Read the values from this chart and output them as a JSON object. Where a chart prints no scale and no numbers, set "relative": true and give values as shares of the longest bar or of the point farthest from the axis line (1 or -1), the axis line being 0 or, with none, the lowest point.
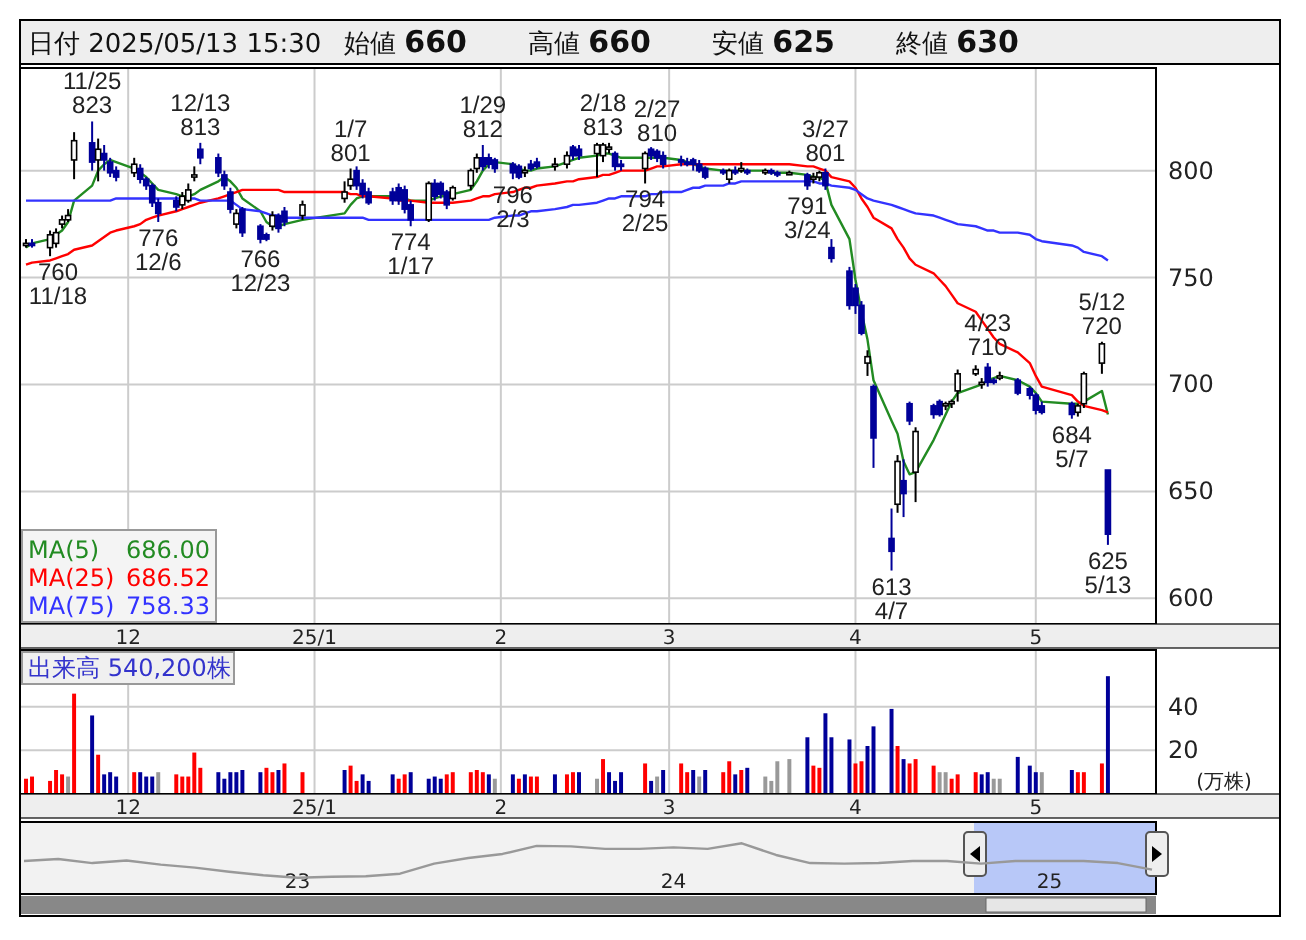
{
  "chart_data": [
    {
      "type": "candlestick",
      "title": "日付 2025/05/13 15:30",
      "annotations": [
        "始値 660",
        "高値 660",
        "安値 625",
        "終値 630",
        {
          "text": "760\n11/18",
          "x": "2024-11-18",
          "y": 760
        },
        {
          "text": "11/25\n823",
          "x": "2024-11-25",
          "y": 823
        },
        {
          "text": "776\n12/6",
          "x": "2024-12-06",
          "y": 776
        },
        {
          "text": "12/13\n813",
          "x": "2024-12-13",
          "y": 813
        },
        {
          "text": "766\n12/23",
          "x": "2024-12-23",
          "y": 766
        },
        {
          "text": "1/7\n801",
          "x": "2025-01-07",
          "y": 801
        },
        {
          "text": "774\n1/17",
          "x": "2025-01-17",
          "y": 774
        },
        {
          "text": "1/29\n812",
          "x": "2025-01-29",
          "y": 812
        },
        {
          "text": "796\n2/3",
          "x": "2025-02-03",
          "y": 796
        },
        {
          "text": "2/18\n813",
          "x": "2025-02-18",
          "y": 813
        },
        {
          "text": "794\n2/25",
          "x": "2025-02-25",
          "y": 794
        },
        {
          "text": "2/27\n810",
          "x": "2025-02-27",
          "y": 810
        },
        {
          "text": "791\n3/24",
          "x": "2025-03-24",
          "y": 791
        },
        {
          "text": "3/27\n801",
          "x": "2025-03-27",
          "y": 801
        },
        {
          "text": "613\n4/7",
          "x": "2025-04-07",
          "y": 613
        },
        {
          "text": "4/23\n710",
          "x": "2025-04-23",
          "y": 710
        },
        {
          "text": "684\n5/7",
          "x": "2025-05-07",
          "y": 684
        },
        {
          "text": "5/12\n720",
          "x": "2025-05-12",
          "y": 720
        },
        {
          "text": "625\n5/13",
          "x": "2025-05-13",
          "y": 625
        }
      ],
      "x": [
        "2024-11-14",
        "2024-11-15",
        "2024-11-18",
        "2024-11-19",
        "2024-11-20",
        "2024-11-21",
        "2024-11-22",
        "2024-11-25",
        "2024-11-26",
        "2024-11-27",
        "2024-11-28",
        "2024-11-29",
        "2024-12-02",
        "2024-12-03",
        "2024-12-04",
        "2024-12-05",
        "2024-12-06",
        "2024-12-09",
        "2024-12-10",
        "2024-12-11",
        "2024-12-12",
        "2024-12-13",
        "2024-12-16",
        "2024-12-17",
        "2024-12-18",
        "2024-12-19",
        "2024-12-20",
        "2024-12-23",
        "2024-12-24",
        "2024-12-25",
        "2024-12-26",
        "2024-12-27",
        "2024-12-30",
        "2025-01-06",
        "2025-01-07",
        "2025-01-08",
        "2025-01-09",
        "2025-01-10",
        "2025-01-14",
        "2025-01-15",
        "2025-01-16",
        "2025-01-17",
        "2025-01-20",
        "2025-01-21",
        "2025-01-22",
        "2025-01-23",
        "2025-01-24",
        "2025-01-27",
        "2025-01-28",
        "2025-01-29",
        "2025-01-30",
        "2025-01-31",
        "2025-02-03",
        "2025-02-04",
        "2025-02-05",
        "2025-02-06",
        "2025-02-07",
        "2025-02-10",
        "2025-02-12",
        "2025-02-13",
        "2025-02-14",
        "2025-02-17",
        "2025-02-18",
        "2025-02-19",
        "2025-02-20",
        "2025-02-21",
        "2025-02-25",
        "2025-02-26",
        "2025-02-27",
        "2025-02-28",
        "2025-03-03",
        "2025-03-04",
        "2025-03-05",
        "2025-03-06",
        "2025-03-07",
        "2025-03-10",
        "2025-03-11",
        "2025-03-12",
        "2025-03-13",
        "2025-03-14",
        "2025-03-17",
        "2025-03-18",
        "2025-03-19",
        "2025-03-21",
        "2025-03-24",
        "2025-03-25",
        "2025-03-26",
        "2025-03-27",
        "2025-03-28",
        "2025-03-31",
        "2025-04-01",
        "2025-04-02",
        "2025-04-03",
        "2025-04-04",
        "2025-04-07",
        "2025-04-08",
        "2025-04-09",
        "2025-04-10",
        "2025-04-11",
        "2025-04-14",
        "2025-04-15",
        "2025-04-16",
        "2025-04-17",
        "2025-04-18",
        "2025-04-21",
        "2025-04-22",
        "2025-04-23",
        "2025-04-24",
        "2025-04-25",
        "2025-04-28",
        "2025-04-30",
        "2025-05-01",
        "2025-05-02",
        "2025-05-07",
        "2025-05-08",
        "2025-05-09",
        "2025-05-12",
        "2025-05-13"
      ],
      "xlim": [
        "2024-11-13",
        "2025-05-21"
      ],
      "xticks": [
        {
          "value": "2024-12-01",
          "label": "12"
        },
        {
          "value": "2025-01-01",
          "label": "25/1"
        },
        {
          "value": "2025-02-01",
          "label": "2"
        },
        {
          "value": "2025-03-01",
          "label": "3"
        },
        {
          "value": "2025-04-01",
          "label": "4"
        },
        {
          "value": "2025-05-01",
          "label": "5"
        }
      ],
      "ylim": [
        588,
        848
      ],
      "yticks": [
        600,
        650,
        700,
        750,
        800
      ],
      "grid": true,
      "legend": "bottom left",
      "ohlc": [
        [
          765,
          768,
          764,
          766
        ],
        [
          766,
          768,
          764,
          765
        ],
        [
          764,
          772,
          760,
          770
        ],
        [
          766,
          773,
          764,
          771
        ],
        [
          775,
          779,
          773,
          777
        ],
        [
          777,
          782,
          776,
          779
        ],
        [
          805,
          818,
          796,
          814
        ],
        [
          813,
          823,
          800,
          804
        ],
        [
          805,
          815,
          795,
          810
        ],
        [
          808,
          812,
          800,
          805
        ],
        [
          804,
          806,
          797,
          799
        ],
        [
          800,
          802,
          795,
          797
        ],
        [
          799,
          806,
          797,
          803
        ],
        [
          801,
          803,
          794,
          796
        ],
        [
          796,
          797,
          791,
          793
        ],
        [
          793,
          794,
          783,
          785
        ],
        [
          785,
          787,
          776,
          780
        ],
        [
          786,
          788,
          781,
          783
        ],
        [
          784,
          790,
          782,
          788
        ],
        [
          786,
          794,
          785,
          791
        ],
        [
          797,
          802,
          795,
          798
        ],
        [
          810,
          813,
          803,
          806
        ],
        [
          806,
          808,
          797,
          799
        ],
        [
          798,
          800,
          791,
          793
        ],
        [
          790,
          792,
          780,
          782
        ],
        [
          775,
          782,
          773,
          780
        ],
        [
          782,
          783,
          769,
          771
        ],
        [
          774,
          775,
          766,
          768
        ],
        [
          770,
          771,
          767,
          768
        ],
        [
          774,
          781,
          772,
          779
        ],
        [
          779,
          780,
          771,
          773
        ],
        [
          781,
          783,
          774,
          776
        ],
        [
          779,
          786,
          777,
          784
        ],
        [
          787,
          795,
          785,
          790
        ],
        [
          793,
          801,
          791,
          796
        ],
        [
          800,
          802,
          791,
          793
        ],
        [
          794,
          796,
          787,
          789
        ],
        [
          790,
          792,
          784,
          785
        ],
        [
          790,
          792,
          784,
          786
        ],
        [
          792,
          794,
          784,
          786
        ],
        [
          791,
          793,
          780,
          782
        ],
        [
          784,
          786,
          774,
          777
        ],
        [
          777,
          795,
          776,
          794
        ],
        [
          794,
          796,
          786,
          788
        ],
        [
          794,
          795,
          787,
          789
        ],
        [
          790,
          791,
          782,
          784
        ],
        [
          787,
          793,
          786,
          792
        ],
        [
          793,
          801,
          791,
          800
        ],
        [
          801,
          808,
          799,
          806
        ],
        [
          806,
          812,
          800,
          802
        ],
        [
          806,
          808,
          801,
          803
        ],
        [
          805,
          806,
          799,
          801
        ],
        [
          803,
          804,
          796,
          799
        ],
        [
          802,
          803,
          796,
          797
        ],
        [
          799,
          802,
          797,
          800
        ],
        [
          803,
          805,
          800,
          801
        ],
        [
          804,
          806,
          801,
          802
        ],
        [
          802,
          806,
          800,
          803
        ],
        [
          803,
          809,
          801,
          807
        ],
        [
          811,
          812,
          805,
          807
        ],
        [
          810,
          812,
          805,
          807
        ],
        [
          808,
          813,
          797,
          812
        ],
        [
          807,
          813,
          804,
          812
        ],
        [
          810,
          813,
          808,
          811
        ],
        [
          808,
          809,
          800,
          802
        ],
        [
          803,
          805,
          800,
          802
        ],
        [
          801,
          809,
          794,
          808
        ],
        [
          810,
          811,
          805,
          807
        ],
        [
          809,
          810,
          804,
          806
        ],
        [
          807,
          809,
          801,
          803
        ],
        [
          805,
          807,
          802,
          804
        ],
        [
          804,
          806,
          802,
          803
        ],
        [
          805,
          806,
          800,
          803
        ],
        [
          803,
          805,
          799,
          800
        ],
        [
          801,
          802,
          796,
          797
        ],
        [
          800,
          801,
          798,
          799
        ],
        [
          796,
          801,
          794,
          800
        ],
        [
          800,
          802,
          798,
          799
        ],
        [
          800,
          804,
          799,
          801
        ],
        [
          800,
          801,
          798,
          799
        ],
        [
          799,
          801,
          798,
          800
        ],
        [
          800,
          801,
          798,
          799
        ],
        [
          799,
          800,
          797,
          798
        ],
        [
          799,
          800,
          798,
          799
        ],
        [
          798,
          799,
          791,
          793
        ],
        [
          796,
          799,
          794,
          797
        ],
        [
          797,
          800,
          795,
          799
        ],
        [
          799,
          801,
          791,
          793
        ],
        [
          764,
          768,
          757,
          759
        ],
        [
          753,
          755,
          735,
          737
        ],
        [
          745,
          747,
          733,
          737
        ],
        [
          737,
          739,
          723,
          724
        ],
        [
          710,
          716,
          704,
          713
        ],
        [
          699,
          700,
          661,
          675
        ],
        [
          628,
          642,
          613,
          622
        ],
        [
          644,
          667,
          640,
          664
        ],
        [
          655,
          665,
          638,
          649
        ],
        [
          691,
          692,
          681,
          683
        ],
        [
          659,
          680,
          645,
          678
        ],
        [
          690,
          691,
          684,
          686
        ],
        [
          692,
          693,
          685,
          686
        ],
        [
          690,
          692,
          688,
          691
        ],
        [
          691,
          693,
          689,
          692
        ],
        [
          697,
          707,
          692,
          705
        ],
        [
          705,
          709,
          704,
          707
        ],
        [
          700,
          703,
          698,
          701
        ],
        [
          708,
          710,
          699,
          701
        ],
        [
          702,
          703,
          700,
          701
        ],
        [
          703,
          706,
          702,
          704
        ],
        [
          702,
          703,
          695,
          696
        ],
        [
          698,
          699,
          693,
          695
        ],
        [
          695,
          696,
          686,
          688
        ],
        [
          690,
          692,
          686,
          687
        ],
        [
          691,
          692,
          684,
          686
        ],
        [
          687,
          691,
          685,
          690
        ],
        [
          691,
          706,
          689,
          705
        ],
        [
          710,
          720,
          705,
          719
        ],
        [
          660,
          660,
          625,
          630
        ]
      ],
      "colors": [
        "#ffffff",
        "#000099",
        "#ffffff",
        "#ffffff",
        "#ffffff",
        "#ffffff",
        "#ffffff",
        "#000099",
        "#ffffff",
        "#000099",
        "#000099",
        "#000099",
        "#ffffff",
        "#000099",
        "#000099",
        "#000099",
        "#000099",
        "#000099",
        "#ffffff",
        "#ffffff",
        "#ffffff",
        "#000099",
        "#000099",
        "#000099",
        "#000099",
        "#ffffff",
        "#000099",
        "#000099",
        "#000099",
        "#ffffff",
        "#000099",
        "#000099",
        "#ffffff",
        "#ffffff",
        "#ffffff",
        "#000099",
        "#000099",
        "#000099",
        "#000099",
        "#000099",
        "#000099",
        "#000099",
        "#ffffff",
        "#000099",
        "#000099",
        "#000099",
        "#ffffff",
        "#ffffff",
        "#ffffff",
        "#000099",
        "#000099",
        "#000099",
        "#000099",
        "#000099",
        "#ffffff",
        "#000099",
        "#000099",
        "#ffffff",
        "#ffffff",
        "#000099",
        "#000099",
        "#ffffff",
        "#ffffff",
        "#ffffff",
        "#000099",
        "#000099",
        "#ffffff",
        "#000099",
        "#000099",
        "#000099",
        "#000099",
        "#000099",
        "#000099",
        "#000099",
        "#000099",
        "#000099",
        "#ffffff",
        "#000099",
        "#ffffff",
        "#000099",
        "#ffffff",
        "#000099",
        "#000099",
        "#ffffff",
        "#000099",
        "#ffffff",
        "#ffffff",
        "#000099",
        "#000099",
        "#000099",
        "#000099",
        "#000099",
        "#ffffff",
        "#000099",
        "#000099",
        "#ffffff",
        "#000099",
        "#000099",
        "#ffffff",
        "#000099",
        "#000099",
        "#ffffff",
        "#ffffff",
        "#ffffff",
        "#ffffff",
        "#ffffff",
        "#000099",
        "#000099",
        "#ffffff",
        "#000099",
        "#000099",
        "#000099",
        "#000099",
        "#000099",
        "#ffffff",
        "#ffffff",
        "#ffffff",
        "#000099"
      ],
      "series": [
        {
          "type": "line",
          "name": "MA(5) 686.00",
          "color": "#228b22",
          "values": [
            764,
            766,
            768,
            770,
            772,
            776,
            786,
            793,
            800,
            803,
            805,
            804,
            801,
            799,
            797,
            794,
            791,
            789,
            788,
            788,
            789,
            791,
            795,
            797,
            795,
            792,
            787,
            781,
            776,
            774,
            774,
            775,
            777,
            780,
            784,
            787,
            788,
            788,
            788,
            788,
            787,
            786,
            786,
            787,
            788,
            788,
            789,
            791,
            795,
            800,
            803,
            804,
            803,
            801,
            800,
            800,
            801,
            802,
            804,
            805,
            806,
            807,
            808,
            808,
            807,
            806,
            806,
            806,
            806,
            806,
            805,
            804,
            803,
            802,
            801,
            800,
            800,
            800,
            800,
            800,
            800,
            799,
            799,
            799,
            798,
            797,
            797,
            795,
            784,
            768,
            749,
            734,
            721,
            702,
            683,
            677,
            664,
            658,
            659,
            674,
            680,
            686,
            692,
            696,
            699,
            700,
            702,
            703,
            704,
            702,
            699,
            696,
            692,
            691,
            691,
            692,
            697,
            686
          ]
        },
        {
          "type": "line",
          "name": "MA(25) 686.52",
          "color": "#ff0000",
          "values": [
            756,
            757,
            758,
            759,
            760,
            761,
            763,
            765,
            767,
            769,
            771,
            772,
            774,
            775,
            777,
            778,
            779,
            781,
            782,
            783,
            784,
            785,
            787,
            788,
            789,
            790,
            791,
            791,
            791,
            791,
            791,
            790,
            790,
            790,
            789,
            789,
            788,
            788,
            787,
            786,
            786,
            786,
            785,
            785,
            785,
            785,
            785,
            786,
            787,
            788,
            788,
            789,
            790,
            791,
            792,
            792,
            793,
            794,
            795,
            795,
            796,
            797,
            798,
            798,
            799,
            800,
            800,
            801,
            802,
            802,
            803,
            803,
            803,
            803,
            803,
            803,
            803,
            803,
            803,
            803,
            803,
            803,
            803,
            803,
            802,
            802,
            801,
            800,
            797,
            795,
            792,
            787,
            783,
            778,
            773,
            768,
            764,
            759,
            756,
            752,
            749,
            746,
            742,
            738,
            734,
            730,
            726,
            722,
            719,
            715,
            710,
            704,
            699,
            695,
            692,
            690,
            688,
            687
          ]
        },
        {
          "type": "line",
          "name": "MA(75) 758.33",
          "color": "#3333ff",
          "values": [
            786,
            786,
            786,
            786,
            786,
            786,
            786,
            786,
            786,
            786,
            786,
            787,
            787,
            787,
            787,
            787,
            787,
            787,
            787,
            787,
            787,
            786,
            786,
            786,
            786,
            784,
            782,
            781,
            780,
            779,
            779,
            778,
            778,
            778,
            778,
            778,
            778,
            777,
            777,
            777,
            777,
            777,
            777,
            777,
            777,
            777,
            777,
            777,
            777,
            777,
            777,
            778,
            779,
            779,
            780,
            781,
            781,
            782,
            783,
            784,
            784,
            785,
            786,
            787,
            787,
            788,
            788,
            789,
            789,
            790,
            790,
            791,
            792,
            792,
            793,
            793,
            794,
            794,
            795,
            795,
            795,
            795,
            795,
            795,
            795,
            795,
            794,
            794,
            793,
            792,
            791,
            789,
            787,
            786,
            784,
            783,
            782,
            781,
            780,
            779,
            778,
            777,
            776,
            775,
            774,
            773,
            772,
            772,
            771,
            771,
            770,
            768,
            767,
            765,
            764,
            762,
            760,
            758
          ]
        }
      ]
    },
    {
      "type": "bar",
      "title": "出来高 540,200株",
      "ylabel": "(万株)",
      "x": [
        "2024-11-14",
        "2024-11-15",
        "2024-11-18",
        "2024-11-19",
        "2024-11-20",
        "2024-11-21",
        "2024-11-22",
        "2024-11-25",
        "2024-11-26",
        "2024-11-27",
        "2024-11-28",
        "2024-11-29",
        "2024-12-02",
        "2024-12-03",
        "2024-12-04",
        "2024-12-05",
        "2024-12-06",
        "2024-12-09",
        "2024-12-10",
        "2024-12-11",
        "2024-12-12",
        "2024-12-13",
        "2024-12-16",
        "2024-12-17",
        "2024-12-18",
        "2024-12-19",
        "2024-12-20",
        "2024-12-23",
        "2024-12-24",
        "2024-12-25",
        "2024-12-26",
        "2024-12-27",
        "2024-12-30",
        "2025-01-06",
        "2025-01-07",
        "2025-01-08",
        "2025-01-09",
        "2025-01-10",
        "2025-01-14",
        "2025-01-15",
        "2025-01-16",
        "2025-01-17",
        "2025-01-20",
        "2025-01-21",
        "2025-01-22",
        "2025-01-23",
        "2025-01-24",
        "2025-01-27",
        "2025-01-28",
        "2025-01-29",
        "2025-01-30",
        "2025-01-31",
        "2025-02-03",
        "2025-02-04",
        "2025-02-05",
        "2025-02-06",
        "2025-02-07",
        "2025-02-10",
        "2025-02-12",
        "2025-02-13",
        "2025-02-14",
        "2025-02-17",
        "2025-02-18",
        "2025-02-19",
        "2025-02-20",
        "2025-02-21",
        "2025-02-25",
        "2025-02-26",
        "2025-02-27",
        "2025-02-28",
        "2025-03-03",
        "2025-03-04",
        "2025-03-05",
        "2025-03-06",
        "2025-03-07",
        "2025-03-10",
        "2025-03-11",
        "2025-03-12",
        "2025-03-13",
        "2025-03-14",
        "2025-03-17",
        "2025-03-18",
        "2025-03-19",
        "2025-03-21",
        "2025-03-24",
        "2025-03-25",
        "2025-03-26",
        "2025-03-27",
        "2025-03-28",
        "2025-03-31",
        "2025-04-01",
        "2025-04-02",
        "2025-04-03",
        "2025-04-04",
        "2025-04-07",
        "2025-04-08",
        "2025-04-09",
        "2025-04-10",
        "2025-04-11",
        "2025-04-14",
        "2025-04-15",
        "2025-04-16",
        "2025-04-17",
        "2025-04-18",
        "2025-04-21",
        "2025-04-22",
        "2025-04-23",
        "2025-04-24",
        "2025-04-25",
        "2025-04-28",
        "2025-04-30",
        "2025-05-01",
        "2025-05-02",
        "2025-05-07",
        "2025-05-08",
        "2025-05-09",
        "2025-05-12",
        "2025-05-13"
      ],
      "xlim": [
        "2024-11-13",
        "2025-05-21"
      ],
      "xticks": [
        {
          "value": "2024-12-01",
          "label": "12"
        },
        {
          "value": "2025-01-01",
          "label": "25/1"
        },
        {
          "value": "2025-02-01",
          "label": "2"
        },
        {
          "value": "2025-03-01",
          "label": "3"
        },
        {
          "value": "2025-04-01",
          "label": "4"
        },
        {
          "value": "2025-05-01",
          "label": "5"
        }
      ],
      "ylim": [
        0,
        66
      ],
      "yticks": [
        20,
        40
      ],
      "grid": true,
      "values": [
        7,
        8,
        6,
        11,
        9,
        8,
        46,
        36,
        18,
        9,
        10,
        8,
        10,
        10,
        8,
        8,
        10,
        9,
        8,
        8,
        19,
        12,
        10,
        7,
        10,
        10,
        11,
        10,
        12,
        10,
        11,
        14,
        10,
        11,
        13,
        6,
        9,
        6,
        9,
        7,
        9,
        10,
        7,
        8,
        7,
        9,
        10,
        10,
        11,
        10,
        9,
        7,
        9,
        7,
        9,
        8,
        8,
        9,
        9,
        10,
        10,
        7,
        16,
        10,
        6,
        10,
        14,
        6,
        8,
        11,
        14,
        10,
        11,
        8,
        11,
        10,
        15,
        9,
        11,
        12,
        8,
        6,
        15,
        16,
        26,
        13,
        12,
        37,
        26,
        25,
        14,
        15,
        22,
        31,
        39,
        22,
        16,
        14,
        16,
        13,
        10,
        10,
        7,
        9,
        10,
        9,
        10,
        7,
        7,
        17,
        13,
        10,
        10,
        11,
        10,
        10,
        14,
        54
      ],
      "colors": [
        "#ff0000",
        "#ff0000",
        "#ff0000",
        "#ff0000",
        "#ff0000",
        "#999999",
        "#ff0000",
        "#000099",
        "#ff0000",
        "#000099",
        "#000099",
        "#000099",
        "#ff0000",
        "#000099",
        "#000099",
        "#000099",
        "#999999",
        "#ff0000",
        "#ff0000",
        "#ff0000",
        "#ff0000",
        "#ff0000",
        "#000099",
        "#000099",
        "#000099",
        "#000099",
        "#000099",
        "#000099",
        "#ff0000",
        "#ff0000",
        "#000099",
        "#ff0000",
        "#ff0000",
        "#000099",
        "#ff0000",
        "#ff0000",
        "#000099",
        "#000099",
        "#000099",
        "#ff0000",
        "#ff0000",
        "#000099",
        "#000099",
        "#000099",
        "#000099",
        "#ff0000",
        "#ff0000",
        "#ff0000",
        "#ff0000",
        "#ff0000",
        "#000099",
        "#999999",
        "#000099",
        "#ff0000",
        "#000099",
        "#ff0000",
        "#ff0000",
        "#000099",
        "#ff0000",
        "#ff0000",
        "#000099",
        "#999999",
        "#ff0000",
        "#000099",
        "#000099",
        "#000099",
        "#ff0000",
        "#000099",
        "#999999",
        "#000099",
        "#ff0000",
        "#ff0000",
        "#000099",
        "#999999",
        "#000099",
        "#ff0000",
        "#ff0000",
        "#000099",
        "#ff0000",
        "#000099",
        "#999999",
        "#999999",
        "#999999",
        "#999999",
        "#000099",
        "#ff0000",
        "#ff0000",
        "#000099",
        "#000099",
        "#000099",
        "#ff0000",
        "#ff0000",
        "#000099",
        "#000099",
        "#000099",
        "#ff0000",
        "#000099",
        "#ff0000",
        "#ff0000",
        "#ff0000",
        "#999999",
        "#999999",
        "#ff0000",
        "#ff0000",
        "#ff0000",
        "#000099",
        "#000099",
        "#999999",
        "#999999",
        "#000099",
        "#000099",
        "#000099",
        "#999999",
        "#000099",
        "#ff0000",
        "#ff0000",
        "#ff0000",
        "#000099"
      ]
    },
    {
      "type": "line",
      "relative": true,
      "color": "#999999",
      "categories": [
        null,
        null,
        null,
        null,
        null,
        null,
        null,
        null,
        "23",
        null,
        null,
        null,
        null,
        null,
        null,
        null,
        null,
        null,
        null,
        "24",
        null,
        null,
        null,
        null,
        null,
        null,
        null,
        null,
        null,
        null,
        "25",
        null,
        null,
        null
      ],
      "values": [
        0.65,
        0.69,
        0.61,
        0.66,
        0.58,
        0.52,
        0.44,
        0.37,
        0.32,
        0.34,
        0.35,
        0.4,
        0.6,
        0.71,
        0.79,
        0.95,
        0.94,
        0.89,
        0.89,
        0.92,
        0.89,
        1,
        0.77,
        0.61,
        0.6,
        0.61,
        0.65,
        0.65,
        0.6,
        0.65,
        0.65,
        0.65,
        0.61,
        0.48
      ]
    }
  ]
}
